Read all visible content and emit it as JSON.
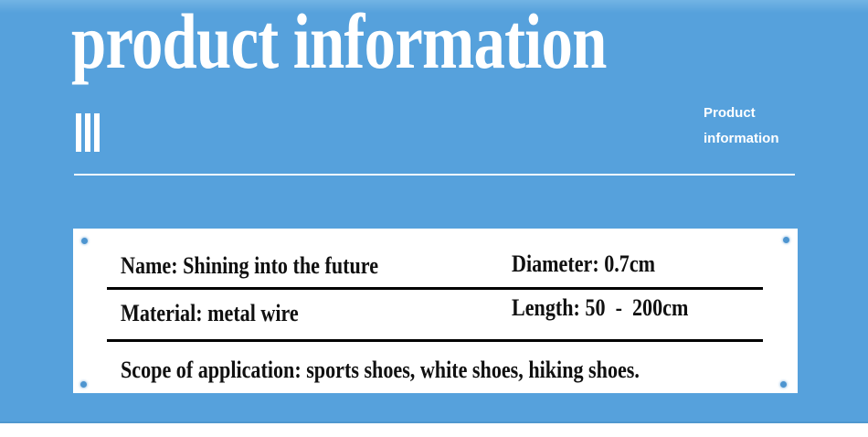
{
  "colors": {
    "banner_blue": "#56a1dc",
    "banner_blue_light": "#72b4e4",
    "banner_edge": "#4f97cf",
    "text_on_banner": "#ffffff",
    "card_bg": "#ffffff",
    "card_text": "#101010",
    "corner_dot": "#4d95d0"
  },
  "banner": {
    "title": "product information",
    "subtitle_lines": [
      "Product",
      "information"
    ]
  },
  "card": {
    "rows": [
      {
        "left": "Name: Shining into the future",
        "right": "Diameter: 0.7cm"
      },
      {
        "left": "Material: metal wire",
        "right": "Length: 50  -  200cm"
      }
    ],
    "footer": "Scope of application: sports shoes, white shoes, hiking shoes."
  }
}
